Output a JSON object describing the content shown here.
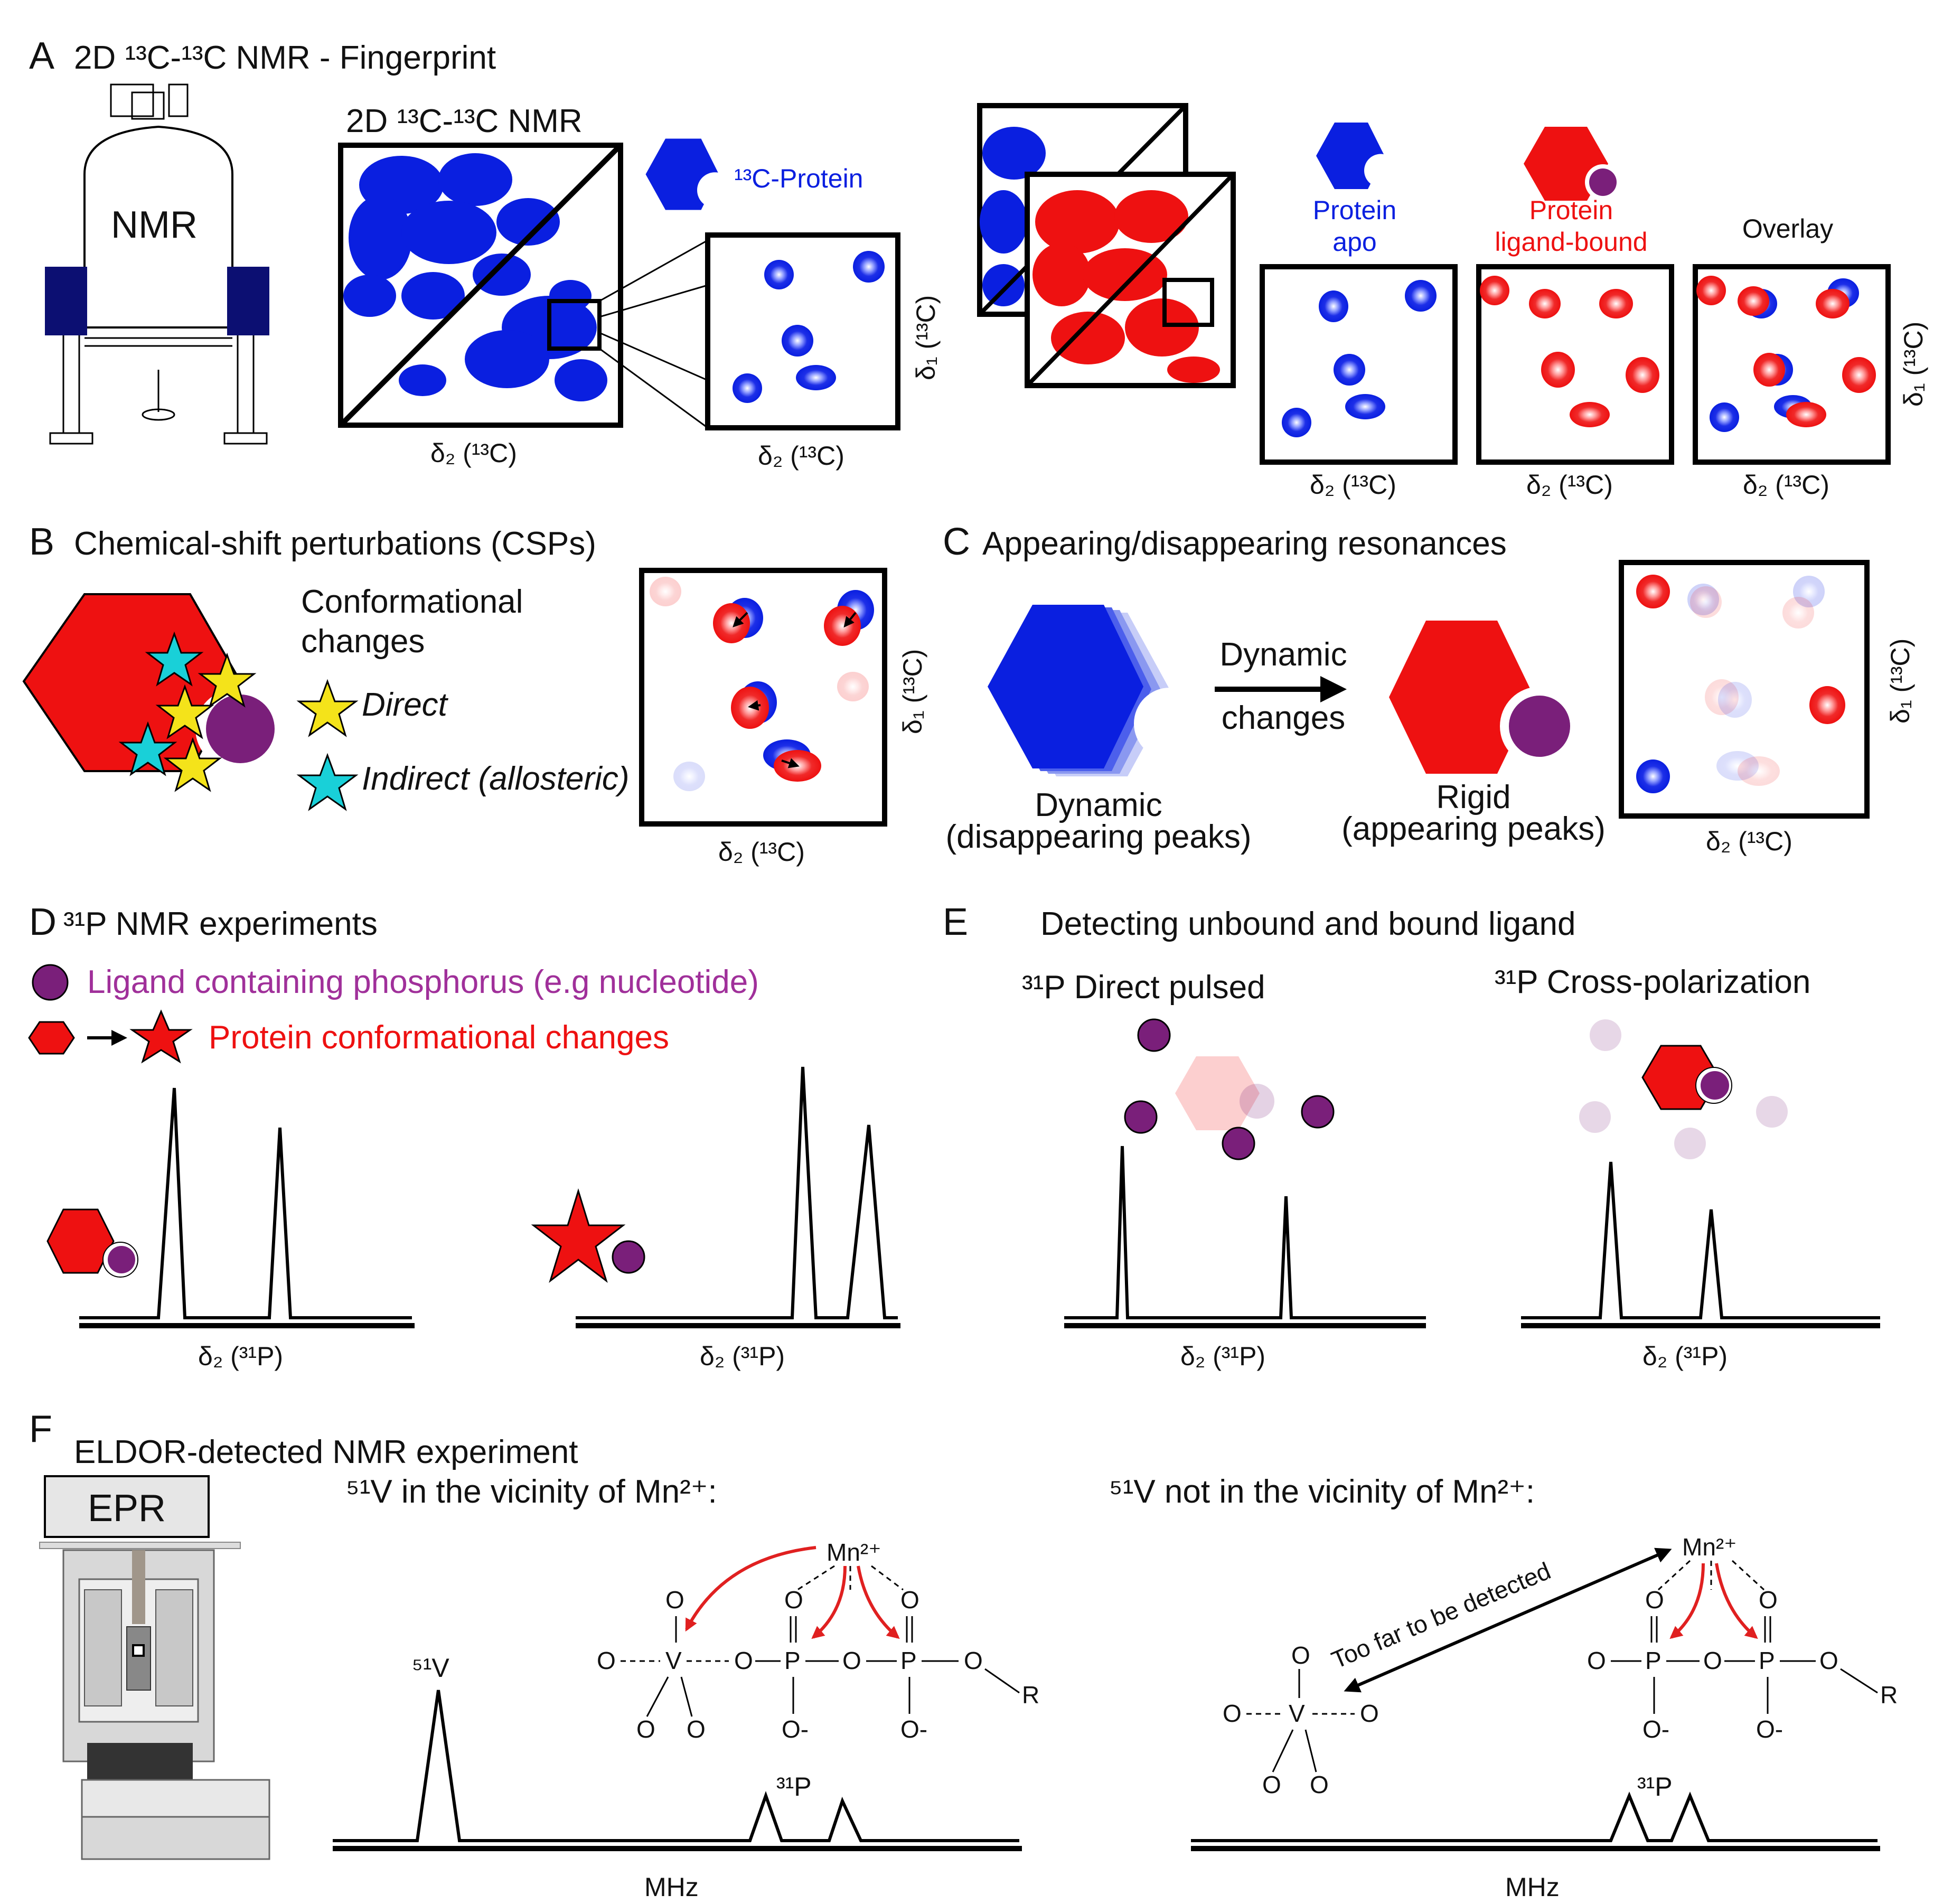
{
  "colors": {
    "blue": "#0a1fe0",
    "red": "#ee1111",
    "purple": "#7a1f7a",
    "cyan": "#19d0d8",
    "yellow": "#f4e31a",
    "navy": "#0c0f72",
    "magenta_text": "#a0309a"
  },
  "panels": {
    "A": {
      "letter": "A",
      "title": "2D ¹³C-¹³C NMR - Fingerprint",
      "magnet_label": "NMR",
      "spectrum_title": "2D ¹³C-¹³C NMR",
      "protein_label": "¹³C-Protein",
      "axis_x": "δ₂ (¹³C)",
      "axis_y": "δ₁ (¹³C)",
      "apo_label_line1": "Protein",
      "apo_label_line2": "apo",
      "bound_label_line1": "Protein",
      "bound_label_line2": "ligand-bound",
      "overlay_label": "Overlay"
    },
    "B": {
      "letter": "B",
      "title": "Chemical-shift perturbations (CSPs)",
      "conf_line1": "Conformational",
      "conf_line2": "changes",
      "direct": "Direct",
      "indirect": "Indirect (allosteric)",
      "axis_x": "δ₂ (¹³C)",
      "axis_y": "δ₁ (¹³C)"
    },
    "C": {
      "letter": "C",
      "title": "Appearing/disappearing resonances",
      "arrow_line1": "Dynamic",
      "arrow_line2": "changes",
      "dyn_line1": "Dynamic",
      "dyn_line2": "(disappearing peaks)",
      "rigid_line1": "Rigid",
      "rigid_line2": "(appearing peaks)",
      "axis_x": "δ₂ (¹³C)",
      "axis_y": "δ₁ (¹³C)"
    },
    "D": {
      "letter": "D",
      "title": "³¹P NMR experiments",
      "legend_ligand": "Ligand containing phosphorus (e.g nucleotide)",
      "legend_protein": "Protein conformational changes",
      "axis_x": "δ₂ (³¹P)"
    },
    "E": {
      "letter": "E",
      "title": "Detecting unbound and bound ligand",
      "direct_label": "³¹P Direct pulsed",
      "cp_label": "³¹P Cross-polarization",
      "axis_x": "δ₂ (³¹P)"
    },
    "F": {
      "letter": "F",
      "title": "ELDOR-detected NMR experiment",
      "epr_label": "EPR",
      "left_title": "⁵¹V in the vicinity of Mn²⁺:",
      "right_title": "⁵¹V not in the vicinity of Mn²⁺:",
      "mn_label": "Mn²⁺",
      "v51_label": "⁵¹V",
      "p31_label": "³¹P",
      "axis_x": "MHz",
      "too_far": "Too far to be detected",
      "atom_O": "O",
      "atom_V": "V",
      "atom_P": "P",
      "atom_R": "R",
      "atom_O_minus": "O-"
    }
  }
}
